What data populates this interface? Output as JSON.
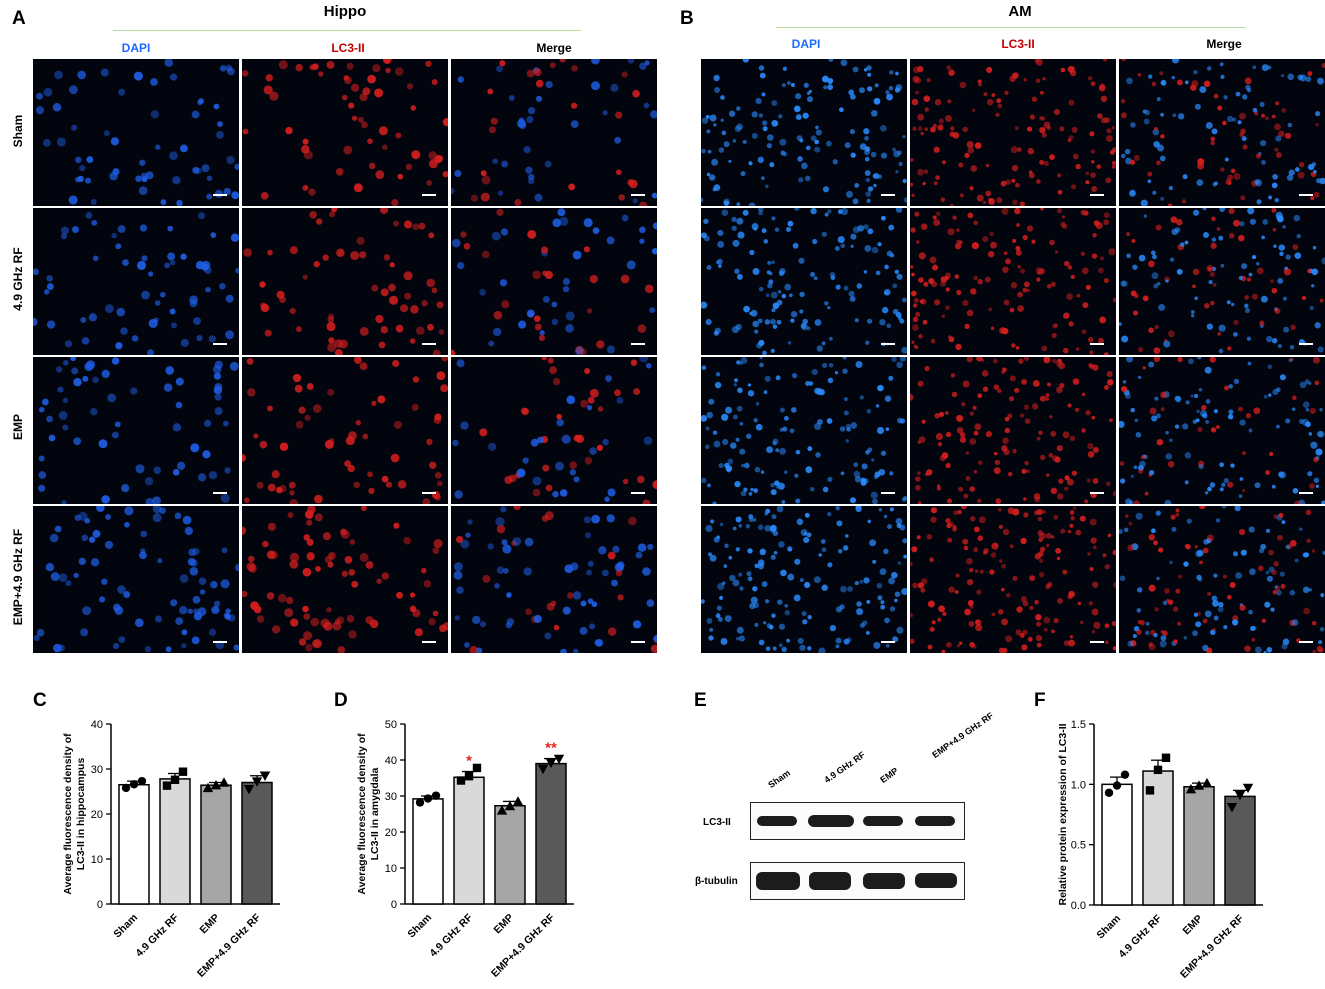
{
  "panels": {
    "A": {
      "letter": "A",
      "title": "Hippo",
      "columns": [
        "DAPI",
        "LC3-II",
        "Merge"
      ],
      "rows": [
        "Sham",
        "4.9 GHz RF",
        "EMP",
        "EMP+4.9 GHz RF"
      ]
    },
    "B": {
      "letter": "B",
      "title": "AM",
      "columns": [
        "DAPI",
        "LC3-II",
        "Merge"
      ]
    },
    "C": {
      "letter": "C"
    },
    "D": {
      "letter": "D"
    },
    "E": {
      "letter": "E",
      "lanes": [
        "Sham",
        "4.9 GHz RF",
        "EMP",
        "EMP+4.9 GHz RF"
      ],
      "rows": [
        "LC3-II",
        "β-tubulin"
      ]
    },
    "F": {
      "letter": "F"
    }
  },
  "colors": {
    "dapi": "#1f6bff",
    "lc3": "#cc1f1f",
    "significance": "#e8231c",
    "bar_fills": [
      "#ffffff",
      "#d9d9d9",
      "#a6a6a6",
      "#595959"
    ]
  },
  "chart_data": [
    {
      "id": "C",
      "type": "bar",
      "categories": [
        "Sham",
        "4.9 GHz RF",
        "EMP",
        "EMP+4.9 GHz RF"
      ],
      "values": [
        26.5,
        27.8,
        26.4,
        27.0
      ],
      "errors": [
        0.8,
        1.2,
        0.6,
        1.5
      ],
      "points": [
        [
          25.8,
          26.6,
          27.3
        ],
        [
          26.3,
          27.6,
          29.4
        ],
        [
          25.8,
          26.4,
          27.0
        ],
        [
          25.5,
          27.2,
          28.5
        ]
      ],
      "ylabel": "Average fluorescence density of LC3-II in hippocampus",
      "ylim": [
        0,
        40
      ],
      "yticks": [
        0,
        10,
        20,
        30,
        40
      ],
      "annotations": [
        "",
        "",
        "",
        ""
      ]
    },
    {
      "id": "D",
      "type": "bar",
      "categories": [
        "Sham",
        "4.9 GHz RF",
        "EMP",
        "EMP+4.9 GHz RF"
      ],
      "values": [
        29.2,
        35.2,
        27.3,
        39.0
      ],
      "errors": [
        0.8,
        1.6,
        1.2,
        1.4
      ],
      "points": [
        [
          28.2,
          29.3,
          30.1
        ],
        [
          34.3,
          35.5,
          37.8
        ],
        [
          26.0,
          27.2,
          28.5
        ],
        [
          37.5,
          39.2,
          40.3
        ]
      ],
      "ylabel": "Average fluorescence density of LC3-II in amygdala",
      "ylim": [
        0,
        50
      ],
      "yticks": [
        0,
        10,
        20,
        30,
        40,
        50
      ],
      "annotations": [
        "",
        "*",
        "",
        "**"
      ]
    },
    {
      "id": "F",
      "type": "bar",
      "categories": [
        "Sham",
        "4.9 GHz RF",
        "EMP",
        "EMP+4.9 GHz RF"
      ],
      "values": [
        1.0,
        1.11,
        0.98,
        0.9
      ],
      "errors": [
        0.06,
        0.09,
        0.03,
        0.05
      ],
      "points": [
        [
          0.93,
          0.99,
          1.08
        ],
        [
          0.95,
          1.12,
          1.22
        ],
        [
          0.96,
          0.99,
          1.01
        ],
        [
          0.81,
          0.91,
          0.97
        ]
      ],
      "ylabel": "Relative protein expression of LC3-II",
      "ylim": [
        0,
        1.5
      ],
      "yticks": [
        "0.0",
        "0.5",
        "1.0",
        "1.5"
      ],
      "annotations": [
        "",
        "",
        "",
        ""
      ]
    }
  ]
}
